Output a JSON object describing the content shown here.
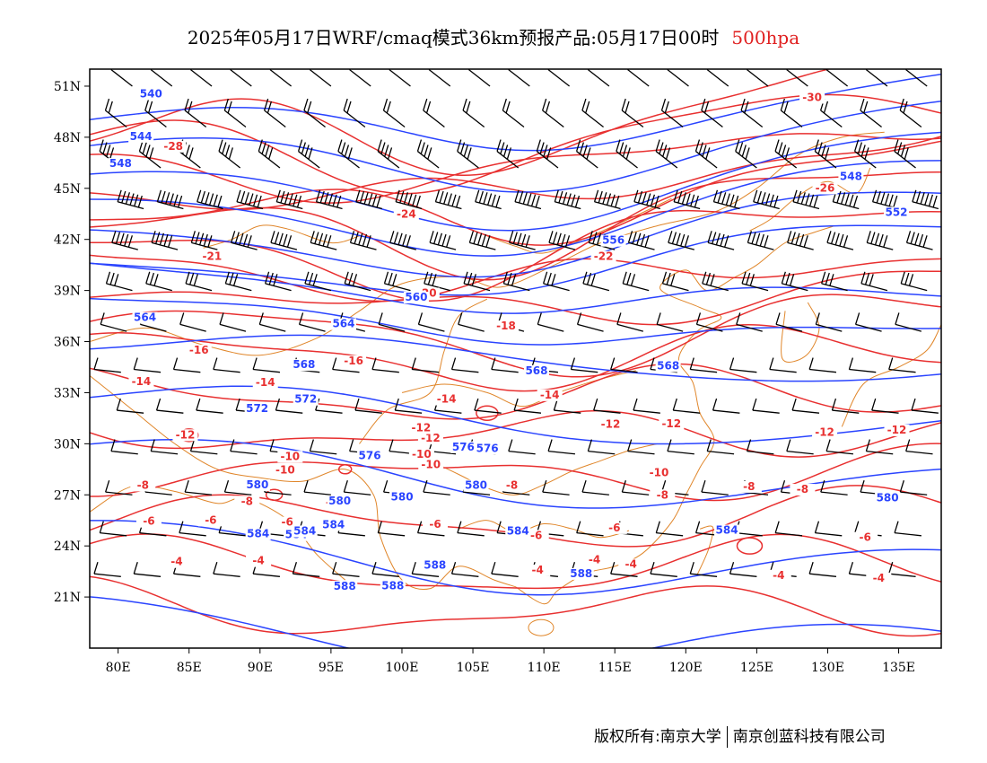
{
  "title": {
    "main": "2025年05月17日WRF/cmaq模式36km预报产品:05月17日00时",
    "level": "500hpa",
    "level_color": "#e02020"
  },
  "footer": {
    "copyright": "版权所有:南京大学",
    "company": "南京创蓝科技有限公司"
  },
  "map": {
    "lon_range": [
      78,
      138
    ],
    "lat_range": [
      18,
      52
    ],
    "lon_ticks": [
      "80E",
      "85E",
      "90E",
      "95E",
      "100E",
      "105E",
      "110E",
      "115E",
      "120E",
      "125E",
      "130E",
      "135E"
    ],
    "lat_ticks": [
      "51N",
      "48N",
      "45N",
      "42N",
      "39N",
      "36N",
      "33N",
      "30N",
      "27N",
      "24N",
      "21N"
    ],
    "colors": {
      "temperature": "#e83030",
      "height": "#2a44ff",
      "boundary": "#e0862a",
      "wind": "#000000"
    },
    "temperature_labels": [
      "-30",
      "-28",
      "-26",
      "-24",
      "-22",
      "-21",
      "-20",
      "-18",
      "-16",
      "-16",
      "-14",
      "-14",
      "-14",
      "-14",
      "-12",
      "-12",
      "-12",
      "-12",
      "-12",
      "-12",
      "-12",
      "-10",
      "-10",
      "-10",
      "-10",
      "-10",
      "-8",
      "-8",
      "-8",
      "-8",
      "-8",
      "-8",
      "-6",
      "-6",
      "-6",
      "-6",
      "-6",
      "-6",
      "-4",
      "-4",
      "-4",
      "-4",
      "-4",
      "-4",
      "-4",
      "-6",
      "-8"
    ],
    "height_labels": [
      "540",
      "544",
      "548",
      "548",
      "552",
      "556",
      "560",
      "564",
      "564",
      "568",
      "568",
      "568",
      "572",
      "572",
      "576",
      "576",
      "576",
      "580",
      "580",
      "580",
      "580",
      "580",
      "584",
      "584",
      "584",
      "584",
      "584",
      "584",
      "588",
      "588",
      "588",
      "588"
    ]
  }
}
